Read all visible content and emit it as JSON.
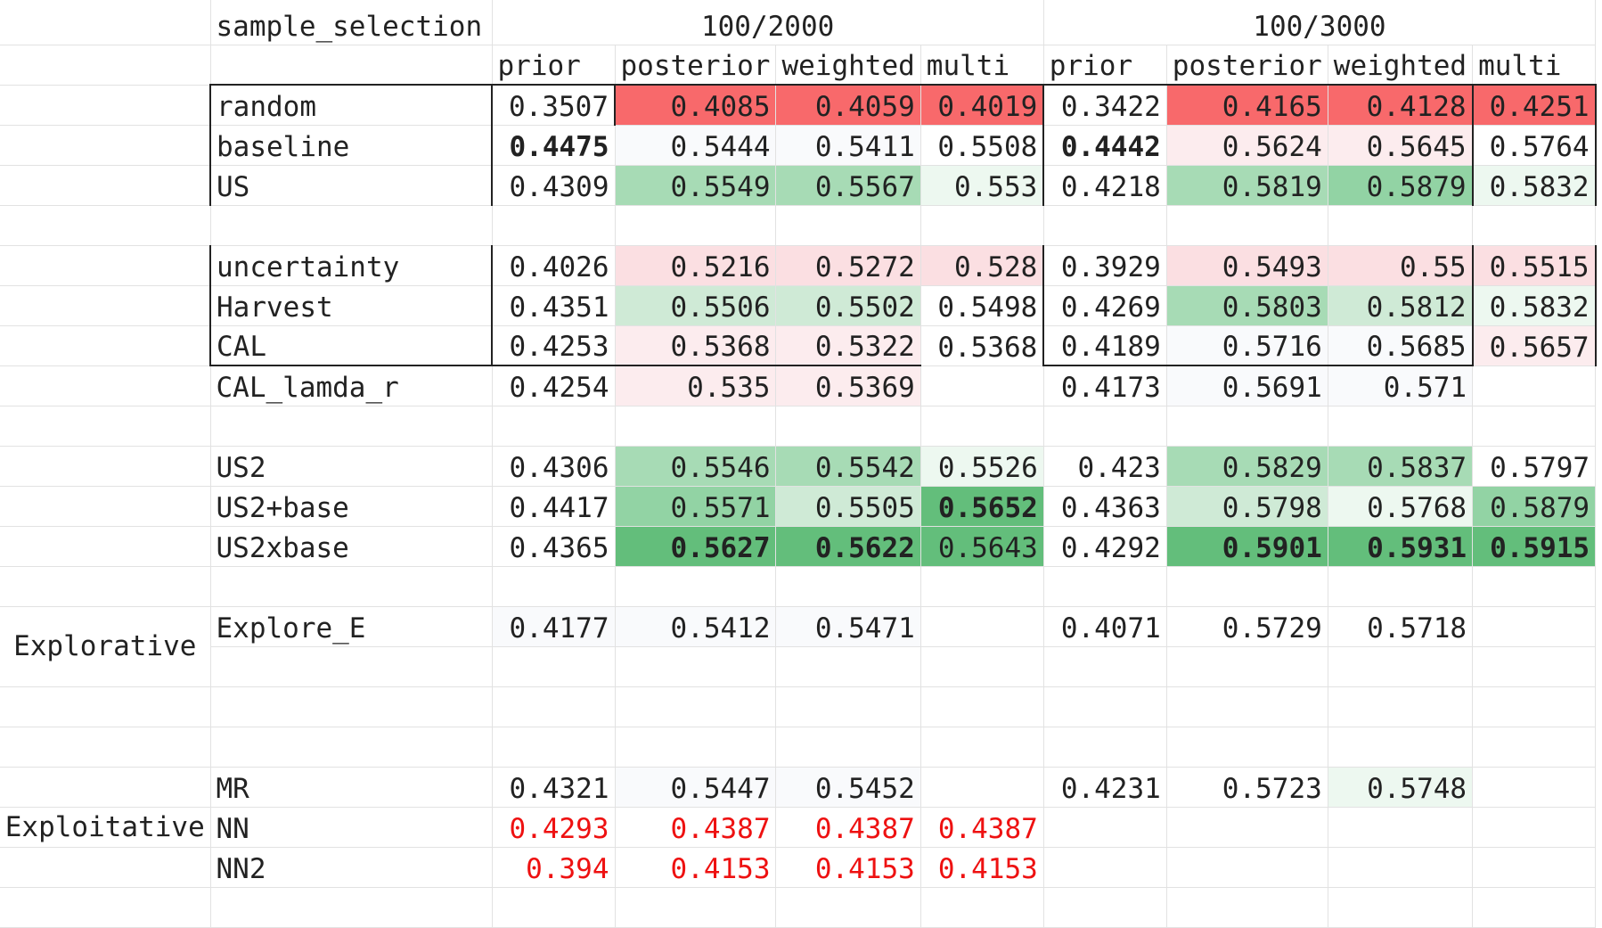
{
  "sheet": {
    "column_widths": [
      236,
      316,
      138,
      180,
      162,
      138,
      138,
      180,
      162,
      138
    ],
    "row_heights": [
      50,
      45,
      45,
      45,
      45,
      45,
      45,
      45,
      45,
      45,
      45,
      45,
      45,
      45,
      45,
      45,
      45,
      45,
      45,
      45,
      45,
      45,
      45
    ],
    "palette": {
      "red_strong": "#f8696b",
      "red_light": "#fbdfe2",
      "red_faint": "#fcecee",
      "white": "#ffffff",
      "near_white": "#f9fafc",
      "green_faint": "#edf8f0",
      "green_light": "#cfead6",
      "green_mid": "#a7dbb5",
      "green_deep": "#92d3a4",
      "green_strong": "#63be7b",
      "red_text": "#ee1111"
    },
    "rows": [
      {
        "cells": [
          {
            "t": ""
          },
          {
            "t": "sample_selection",
            "a": "txt"
          },
          {
            "t": "100/2000",
            "a": "ctr",
            "span": 4
          },
          {
            "t": "100/3000",
            "a": "ctr",
            "span": 4
          }
        ]
      },
      {
        "cells": [
          {
            "t": ""
          },
          {
            "t": "",
            "bb": 1
          },
          {
            "t": "prior",
            "a": "txt",
            "bb": 1
          },
          {
            "t": "posterior",
            "a": "txt",
            "bb": 1
          },
          {
            "t": "weighted",
            "a": "txt",
            "bb": 1
          },
          {
            "t": "multi",
            "a": "txt",
            "bb": 1
          },
          {
            "t": "prior",
            "a": "txt",
            "bb": 1
          },
          {
            "t": "posterior",
            "a": "txt",
            "bb": 1
          },
          {
            "t": "weighted",
            "a": "txt",
            "bb": 1
          },
          {
            "t": "multi",
            "a": "txt",
            "bb": 1
          }
        ]
      },
      {
        "cells": [
          {
            "t": ""
          },
          {
            "t": "random",
            "a": "txt",
            "bl": 1,
            "br": 1
          },
          {
            "t": "0.3507",
            "a": "num",
            "br": 1
          },
          {
            "t": "0.4085",
            "a": "num",
            "bg": "red_strong"
          },
          {
            "t": "0.4059",
            "a": "num",
            "bg": "red_strong"
          },
          {
            "t": "0.4019",
            "a": "num",
            "bg": "red_strong",
            "br": 1
          },
          {
            "t": "0.3422",
            "a": "num"
          },
          {
            "t": "0.4165",
            "a": "num",
            "bg": "red_strong"
          },
          {
            "t": "0.4128",
            "a": "num",
            "bg": "red_strong",
            "br": 1
          },
          {
            "t": "0.4251",
            "a": "num",
            "bg": "red_strong",
            "br": 1
          }
        ]
      },
      {
        "cells": [
          {
            "t": ""
          },
          {
            "t": "baseline",
            "a": "txt",
            "bl": 1,
            "br": 1
          },
          {
            "t": "0.4475",
            "a": "num",
            "bold": 1
          },
          {
            "t": "0.5444",
            "a": "num",
            "bg": "near_white"
          },
          {
            "t": "0.5411",
            "a": "num",
            "bg": "near_white"
          },
          {
            "t": "0.5508",
            "a": "num",
            "br": 1
          },
          {
            "t": "0.4442",
            "a": "num",
            "bold": 1
          },
          {
            "t": "0.5624",
            "a": "num",
            "bg": "red_faint"
          },
          {
            "t": "0.5645",
            "a": "num",
            "bg": "red_faint",
            "br": 1
          },
          {
            "t": "0.5764",
            "a": "num",
            "br": 1
          }
        ]
      },
      {
        "cells": [
          {
            "t": ""
          },
          {
            "t": "US",
            "a": "txt",
            "bl": 1,
            "br": 1
          },
          {
            "t": "0.4309",
            "a": "num"
          },
          {
            "t": "0.5549",
            "a": "num",
            "bg": "green_mid"
          },
          {
            "t": "0.5567",
            "a": "num",
            "bg": "green_mid"
          },
          {
            "t": "0.553",
            "a": "num",
            "bg": "green_faint",
            "br": 1
          },
          {
            "t": "0.4218",
            "a": "num"
          },
          {
            "t": "0.5819",
            "a": "num",
            "bg": "green_mid"
          },
          {
            "t": "0.5879",
            "a": "num",
            "bg": "green_deep",
            "br": 1
          },
          {
            "t": "0.5832",
            "a": "num",
            "bg": "green_faint",
            "br": 1
          }
        ]
      },
      {
        "cells": []
      },
      {
        "cells": [
          {
            "t": ""
          },
          {
            "t": "uncertainty",
            "a": "txt",
            "bl": 1,
            "br": 1
          },
          {
            "t": "0.4026",
            "a": "num"
          },
          {
            "t": "0.5216",
            "a": "num",
            "bg": "red_light"
          },
          {
            "t": "0.5272",
            "a": "num",
            "bg": "red_light"
          },
          {
            "t": "0.528",
            "a": "num",
            "bg": "red_light",
            "br": 1
          },
          {
            "t": "0.3929",
            "a": "num"
          },
          {
            "t": "0.5493",
            "a": "num",
            "bg": "red_light"
          },
          {
            "t": "0.55",
            "a": "num",
            "bg": "red_light",
            "br": 1
          },
          {
            "t": "0.5515",
            "a": "num",
            "bg": "red_light",
            "br": 1
          }
        ]
      },
      {
        "cells": [
          {
            "t": ""
          },
          {
            "t": "Harvest",
            "a": "txt",
            "bl": 1,
            "br": 1
          },
          {
            "t": "0.4351",
            "a": "num"
          },
          {
            "t": "0.5506",
            "a": "num",
            "bg": "green_light"
          },
          {
            "t": "0.5502",
            "a": "num",
            "bg": "green_light"
          },
          {
            "t": "0.5498",
            "a": "num",
            "br": 1
          },
          {
            "t": "0.4269",
            "a": "num"
          },
          {
            "t": "0.5803",
            "a": "num",
            "bg": "green_mid"
          },
          {
            "t": "0.5812",
            "a": "num",
            "bg": "green_light",
            "br": 1
          },
          {
            "t": "0.5832",
            "a": "num",
            "bg": "green_faint",
            "br": 1
          }
        ]
      },
      {
        "cells": [
          {
            "t": ""
          },
          {
            "t": "CAL",
            "a": "txt",
            "bl": 1,
            "br": 1,
            "bb": 1
          },
          {
            "t": "0.4253",
            "a": "num",
            "bb": 1
          },
          {
            "t": "0.5368",
            "a": "num",
            "bg": "red_faint",
            "bb": 1
          },
          {
            "t": "0.5322",
            "a": "num",
            "bg": "red_faint",
            "bb": 1
          },
          {
            "t": "0.5368",
            "a": "num",
            "br": 1
          },
          {
            "t": "0.4189",
            "a": "num",
            "bb": 1
          },
          {
            "t": "0.5716",
            "a": "num",
            "bg": "near_white",
            "bb": 1
          },
          {
            "t": "0.5685",
            "a": "num",
            "bg": "near_white",
            "br": 1,
            "bb": 1
          },
          {
            "t": "0.5657",
            "a": "num",
            "bg": "red_faint",
            "br": 1
          }
        ]
      },
      {
        "cells": [
          {
            "t": ""
          },
          {
            "t": "CAL_lamda_r",
            "a": "txt"
          },
          {
            "t": "0.4254",
            "a": "num"
          },
          {
            "t": "0.535",
            "a": "num",
            "bg": "red_faint"
          },
          {
            "t": "0.5369",
            "a": "num",
            "bg": "red_faint"
          },
          {
            "t": ""
          },
          {
            "t": "0.4173",
            "a": "num"
          },
          {
            "t": "0.5691",
            "a": "num",
            "bg": "near_white"
          },
          {
            "t": "0.571",
            "a": "num",
            "bg": "near_white"
          },
          {
            "t": ""
          }
        ]
      },
      {
        "cells": []
      },
      {
        "cells": [
          {
            "t": ""
          },
          {
            "t": "US2",
            "a": "txt"
          },
          {
            "t": "0.4306",
            "a": "num"
          },
          {
            "t": "0.5546",
            "a": "num",
            "bg": "green_mid"
          },
          {
            "t": "0.5542",
            "a": "num",
            "bg": "green_mid"
          },
          {
            "t": "0.5526",
            "a": "num",
            "bg": "green_faint"
          },
          {
            "t": "0.423",
            "a": "num"
          },
          {
            "t": "0.5829",
            "a": "num",
            "bg": "green_mid"
          },
          {
            "t": "0.5837",
            "a": "num",
            "bg": "green_mid"
          },
          {
            "t": "0.5797",
            "a": "num"
          }
        ]
      },
      {
        "cells": [
          {
            "t": ""
          },
          {
            "t": "US2+base",
            "a": "txt"
          },
          {
            "t": "0.4417",
            "a": "num"
          },
          {
            "t": "0.5571",
            "a": "num",
            "bg": "green_deep"
          },
          {
            "t": "0.5505",
            "a": "num",
            "bg": "green_light"
          },
          {
            "t": "0.5652",
            "a": "num",
            "bg": "green_strong",
            "bold": 1
          },
          {
            "t": "0.4363",
            "a": "num"
          },
          {
            "t": "0.5798",
            "a": "num",
            "bg": "green_light"
          },
          {
            "t": "0.5768",
            "a": "num",
            "bg": "green_faint"
          },
          {
            "t": "0.5879",
            "a": "num",
            "bg": "green_deep"
          }
        ]
      },
      {
        "cells": [
          {
            "t": ""
          },
          {
            "t": "US2xbase",
            "a": "txt"
          },
          {
            "t": "0.4365",
            "a": "num"
          },
          {
            "t": "0.5627",
            "a": "num",
            "bg": "green_strong",
            "bold": 1
          },
          {
            "t": "0.5622",
            "a": "num",
            "bg": "green_strong",
            "bold": 1
          },
          {
            "t": "0.5643",
            "a": "num",
            "bg": "green_strong"
          },
          {
            "t": "0.4292",
            "a": "num"
          },
          {
            "t": "0.5901",
            "a": "num",
            "bg": "green_strong",
            "bold": 1
          },
          {
            "t": "0.5931",
            "a": "num",
            "bg": "green_strong",
            "bold": 1
          },
          {
            "t": "0.5915",
            "a": "num",
            "bg": "green_strong",
            "bold": 1
          }
        ]
      },
      {
        "cells": []
      },
      {
        "cells": [
          {
            "t": "Explorative",
            "a": "group",
            "rowspan": 2
          },
          {
            "t": "Explore_E",
            "a": "txt"
          },
          {
            "t": "0.4177",
            "a": "num",
            "bg": "near_white"
          },
          {
            "t": "0.5412",
            "a": "num",
            "bg": "near_white"
          },
          {
            "t": "0.5471",
            "a": "num",
            "bg": "near_white"
          },
          {
            "t": ""
          },
          {
            "t": "0.4071",
            "a": "num"
          },
          {
            "t": "0.5729",
            "a": "num"
          },
          {
            "t": "0.5718",
            "a": "num"
          },
          {
            "t": ""
          }
        ]
      },
      {
        "cells": [
          {
            "t": ""
          },
          {
            "t": ""
          },
          {
            "t": ""
          },
          {
            "t": ""
          },
          {
            "t": ""
          },
          {
            "t": ""
          },
          {
            "t": ""
          },
          {
            "t": ""
          },
          {
            "t": ""
          }
        ]
      },
      {
        "cells": []
      },
      {
        "cells": []
      },
      {
        "cells": [
          {
            "t": ""
          },
          {
            "t": "MR",
            "a": "txt"
          },
          {
            "t": "0.4321",
            "a": "num"
          },
          {
            "t": "0.5447",
            "a": "num",
            "bg": "near_white"
          },
          {
            "t": "0.5452",
            "a": "num",
            "bg": "near_white"
          },
          {
            "t": ""
          },
          {
            "t": "0.4231",
            "a": "num"
          },
          {
            "t": "0.5723",
            "a": "num"
          },
          {
            "t": "0.5748",
            "a": "num",
            "bg": "green_faint"
          },
          {
            "t": ""
          }
        ]
      },
      {
        "cells": [
          {
            "t": "Exploitative",
            "a": "group"
          },
          {
            "t": "NN",
            "a": "txt"
          },
          {
            "t": "0.4293",
            "a": "num",
            "red": 1
          },
          {
            "t": "0.4387",
            "a": "num",
            "red": 1
          },
          {
            "t": "0.4387",
            "a": "num",
            "red": 1
          },
          {
            "t": "0.4387",
            "a": "num",
            "red": 1
          },
          {
            "t": ""
          },
          {
            "t": ""
          },
          {
            "t": ""
          },
          {
            "t": ""
          }
        ]
      },
      {
        "cells": [
          {
            "t": ""
          },
          {
            "t": "NN2",
            "a": "txt"
          },
          {
            "t": "0.394",
            "a": "num",
            "red": 1
          },
          {
            "t": "0.4153",
            "a": "num",
            "red": 1
          },
          {
            "t": "0.4153",
            "a": "num",
            "red": 1
          },
          {
            "t": "0.4153",
            "a": "num",
            "red": 1
          },
          {
            "t": ""
          },
          {
            "t": ""
          },
          {
            "t": ""
          },
          {
            "t": ""
          }
        ]
      },
      {
        "cells": []
      }
    ]
  }
}
